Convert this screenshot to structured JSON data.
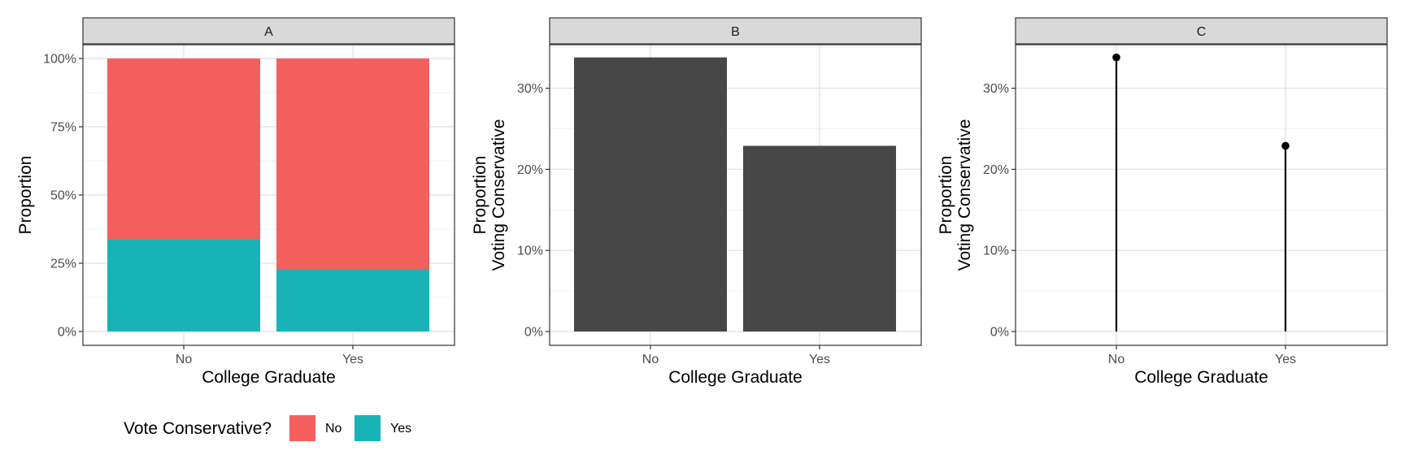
{
  "chart_data": [
    {
      "panel": "A",
      "type": "bar",
      "stacked": true,
      "categories": [
        "No",
        "Yes"
      ],
      "series": [
        {
          "name": "Yes",
          "values": [
            0.338,
            0.229
          ],
          "color": "#17B3B6"
        },
        {
          "name": "No",
          "values": [
            0.662,
            0.771
          ],
          "color": "#F3605D"
        }
      ],
      "xlabel": "College Graduate",
      "ylabel": "Proportion",
      "ylim": [
        0,
        1.05
      ],
      "yticks": [
        0,
        0.25,
        0.5,
        0.75,
        1
      ],
      "ytick_labels": [
        "0%",
        "25%",
        "50%",
        "75%",
        "100%"
      ],
      "grid": true
    },
    {
      "panel": "B",
      "type": "bar",
      "categories": [
        "No",
        "Yes"
      ],
      "values": [
        0.338,
        0.229
      ],
      "color": "#474747",
      "xlabel": "College Graduate",
      "ylabel_lines": [
        "Proportion",
        "Voting Conservative"
      ],
      "ylim": [
        0,
        0.355
      ],
      "yticks": [
        0,
        0.1,
        0.2,
        0.3
      ],
      "ytick_labels": [
        "0%",
        "10%",
        "20%",
        "30%"
      ],
      "grid": true
    },
    {
      "panel": "C",
      "type": "lollipop",
      "categories": [
        "No",
        "Yes"
      ],
      "values": [
        0.338,
        0.229
      ],
      "color": "#000000",
      "xlabel": "College Graduate",
      "ylabel_lines": [
        "Proportion",
        "Voting Conservative"
      ],
      "ylim": [
        0,
        0.355
      ],
      "yticks": [
        0,
        0.1,
        0.2,
        0.3
      ],
      "ytick_labels": [
        "0%",
        "10%",
        "20%",
        "30%"
      ],
      "grid": true
    }
  ],
  "legend": {
    "title": "Vote Conservative?",
    "placement": "bottom-left",
    "items": [
      {
        "label": "No",
        "color": "#F3605D"
      },
      {
        "label": "Yes",
        "color": "#17B3B6"
      }
    ]
  }
}
